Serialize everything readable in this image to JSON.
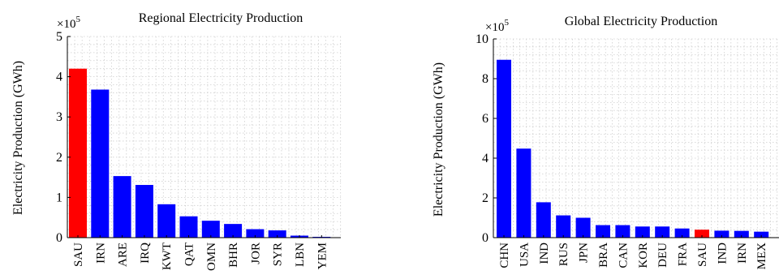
{
  "chart_data": [
    {
      "type": "bar",
      "title": "Regional Electricity Production",
      "ylabel": "Electricity Production (GWh)",
      "xlabel": "",
      "multiplier_base": "×10",
      "multiplier_exp": "5",
      "ylim": [
        0,
        5
      ],
      "yticks": [
        "0",
        "1",
        "2",
        "3",
        "4",
        "5"
      ],
      "grid": true,
      "categories": [
        "SAU",
        "IRN",
        "ARE",
        "IRQ",
        "KWT",
        "QAT",
        "OMN",
        "BHR",
        "JOR",
        "SYR",
        "LBN",
        "YEM"
      ],
      "values": [
        4.2,
        3.68,
        1.53,
        1.31,
        0.83,
        0.53,
        0.42,
        0.34,
        0.21,
        0.18,
        0.05,
        0.02
      ],
      "colors": [
        "#ff0000",
        "#0000ff",
        "#0000ff",
        "#0000ff",
        "#0000ff",
        "#0000ff",
        "#0000ff",
        "#0000ff",
        "#0000ff",
        "#0000ff",
        "#0000ff",
        "#0000ff"
      ]
    },
    {
      "type": "bar",
      "title": "Global Electricity Production",
      "ylabel": "Electricity Production (GWh)",
      "xlabel": "",
      "multiplier_base": "×10",
      "multiplier_exp": "5",
      "ylim": [
        0,
        10
      ],
      "yticks": [
        "0",
        "2",
        "4",
        "6",
        "8",
        "10"
      ],
      "grid": true,
      "categories": [
        "CHN",
        "USA",
        "IND",
        "RUS",
        "JPN",
        "BRA",
        "CAN",
        "KOR",
        "DEU",
        "FRA",
        "SAU",
        "IND",
        "IRN",
        "MEX"
      ],
      "values": [
        8.95,
        4.48,
        1.78,
        1.12,
        1.0,
        0.63,
        0.63,
        0.56,
        0.56,
        0.46,
        0.4,
        0.35,
        0.34,
        0.3
      ],
      "colors": [
        "#0000ff",
        "#0000ff",
        "#0000ff",
        "#0000ff",
        "#0000ff",
        "#0000ff",
        "#0000ff",
        "#0000ff",
        "#0000ff",
        "#0000ff",
        "#ff0000",
        "#0000ff",
        "#0000ff",
        "#0000ff"
      ]
    }
  ]
}
